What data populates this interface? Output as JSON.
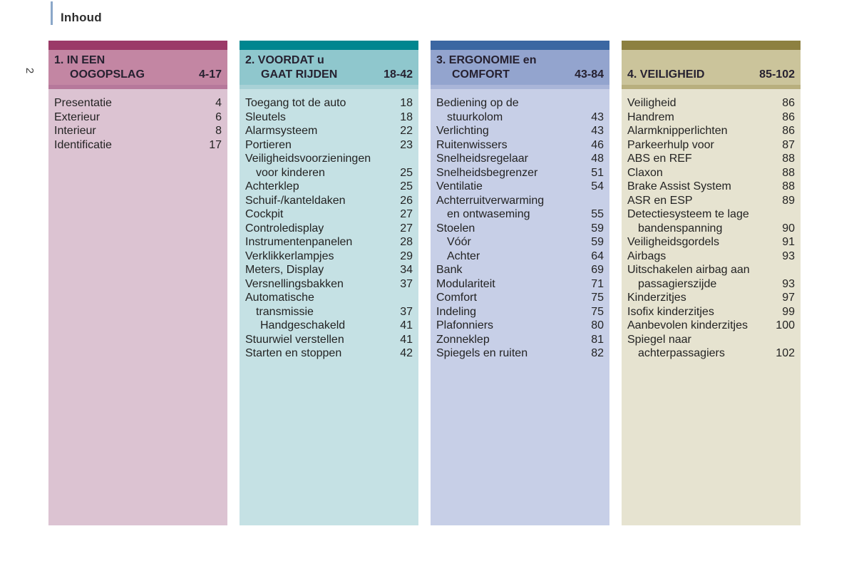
{
  "page": {
    "header_title": "Inhoud",
    "page_number": "2",
    "accent_line_color": "#8BA7C9"
  },
  "columns": [
    {
      "id": "in-een-oogopslag",
      "title": "1. IN EEN\nOOGOPSLAG",
      "range": "4-17",
      "colors": {
        "bar": "#9B3A68",
        "header": "#C386A3",
        "divider": "#B6789B",
        "body": "#DCC3D2"
      },
      "items": [
        {
          "label": "Presentatie",
          "page": "4",
          "indent": 0
        },
        {
          "label": "Exterieur",
          "page": "6",
          "indent": 0
        },
        {
          "label": "Interieur",
          "page": "8",
          "indent": 0
        },
        {
          "label": "Identificatie",
          "page": "17",
          "indent": 0
        }
      ]
    },
    {
      "id": "voordat-u-gaat-rijden",
      "title": "2. VOORDAT u\nGAAT RIJDEN",
      "range": "18-42",
      "colors": {
        "bar": "#00868F",
        "header": "#8FC7CD",
        "divider": "#A8D1D6",
        "body": "#C5E1E4"
      },
      "items": [
        {
          "label": "Toegang tot de auto",
          "page": "18",
          "indent": 0
        },
        {
          "label": "Sleutels",
          "page": "18",
          "indent": 0
        },
        {
          "label": "Alarmsysteem",
          "page": "22",
          "indent": 0
        },
        {
          "label": "Portieren",
          "page": "23",
          "indent": 0
        },
        {
          "label": "Veiligheidsvoorzieningen\nvoor kinderen",
          "page": "25",
          "indent": 0
        },
        {
          "label": "Achterklep",
          "page": "25",
          "indent": 0
        },
        {
          "label": "Schuif-/kanteldaken",
          "page": "26",
          "indent": 0
        },
        {
          "label": "Cockpit",
          "page": "27",
          "indent": 0
        },
        {
          "label": "Controledisplay",
          "page": "27",
          "indent": 0
        },
        {
          "label": "Instrumentenpanelen",
          "page": "28",
          "indent": 0
        },
        {
          "label": "Verklikkerlampjes",
          "page": "29",
          "indent": 0
        },
        {
          "label": "Meters, Display",
          "page": "34",
          "indent": 0
        },
        {
          "label": "Versnellingsbakken",
          "page": "37",
          "indent": 0
        },
        {
          "label": "Automatische",
          "page": "",
          "indent": 0
        },
        {
          "label": "transmissie",
          "page": "37",
          "indent": 1
        },
        {
          "label": "Handgeschakeld",
          "page": "41",
          "indent": 2
        },
        {
          "label": "Stuurwiel verstellen",
          "page": "41",
          "indent": 0
        },
        {
          "label": "Starten en stoppen",
          "page": "42",
          "indent": 0
        }
      ]
    },
    {
      "id": "ergonomie-en-comfort",
      "title": "3. ERGONOMIE en\nCOMFORT",
      "range": "43-84",
      "colors": {
        "bar": "#3B67A2",
        "header": "#93A4CE",
        "divider": "#A9B5D8",
        "body": "#C7CFE7"
      },
      "items": [
        {
          "label": "Bediening op de\nstuurkolom",
          "page": "43",
          "indent": 0
        },
        {
          "label": "Verlichting",
          "page": "43",
          "indent": 0
        },
        {
          "label": "Ruitenwissers",
          "page": "46",
          "indent": 0
        },
        {
          "label": "Snelheidsregelaar",
          "page": "48",
          "indent": 0
        },
        {
          "label": "Snelheidsbegrenzer",
          "page": "51",
          "indent": 0
        },
        {
          "label": "Ventilatie",
          "page": "54",
          "indent": 0
        },
        {
          "label": "Achterruitverwarming\nen ontwaseming",
          "page": "55",
          "indent": 0
        },
        {
          "label": "Stoelen",
          "page": "59",
          "indent": 0
        },
        {
          "label": "Vóór",
          "page": "59",
          "indent": 1
        },
        {
          "label": "Achter",
          "page": "64",
          "indent": 1
        },
        {
          "label": "Bank",
          "page": "69",
          "indent": 0
        },
        {
          "label": "Modulariteit",
          "page": "71",
          "indent": 0
        },
        {
          "label": "Comfort",
          "page": "75",
          "indent": 0
        },
        {
          "label": "Indeling",
          "page": "75",
          "indent": 0
        },
        {
          "label": "Plafonniers",
          "page": "80",
          "indent": 0
        },
        {
          "label": "Zonneklep",
          "page": "81",
          "indent": 0
        },
        {
          "label": "Spiegels en ruiten",
          "page": "82",
          "indent": 0
        }
      ]
    },
    {
      "id": "veiligheid",
      "title": "4. VEILIGHEID",
      "range": "85-102",
      "colors": {
        "bar": "#8D8040",
        "header": "#CBC49B",
        "divider": "#B8AF7E",
        "body": "#E6E3D0"
      },
      "items": [
        {
          "label": "Veiligheid",
          "page": "86",
          "indent": 0
        },
        {
          "label": "Handrem",
          "page": "86",
          "indent": 0
        },
        {
          "label": "Alarmknipperlichten",
          "page": "86",
          "indent": 0
        },
        {
          "label": "Parkeerhulp voor",
          "page": "87",
          "indent": 0
        },
        {
          "label": "ABS en REF",
          "page": "88",
          "indent": 0
        },
        {
          "label": "Claxon",
          "page": "88",
          "indent": 0
        },
        {
          "label": "Brake Assist System",
          "page": "88",
          "indent": 0
        },
        {
          "label": "ASR en ESP",
          "page": "89",
          "indent": 0
        },
        {
          "label": "Detectiesysteem te lage\nbandenspanning",
          "page": "90",
          "indent": 0
        },
        {
          "label": "Veiligheidsgordels",
          "page": "91",
          "indent": 0
        },
        {
          "label": "Airbags",
          "page": "93",
          "indent": 0
        },
        {
          "label": "Uitschakelen airbag aan\npassagierszijde",
          "page": "93",
          "indent": 0
        },
        {
          "label": "Kinderzitjes",
          "page": "97",
          "indent": 0
        },
        {
          "label": "Isofix kinderzitjes",
          "page": "99",
          "indent": 0
        },
        {
          "label": "Aanbevolen kinderzitjes",
          "page": "100",
          "indent": 0
        },
        {
          "label": "Spiegel naar\nachterpassagiers",
          "page": "102",
          "indent": 0
        }
      ]
    }
  ]
}
